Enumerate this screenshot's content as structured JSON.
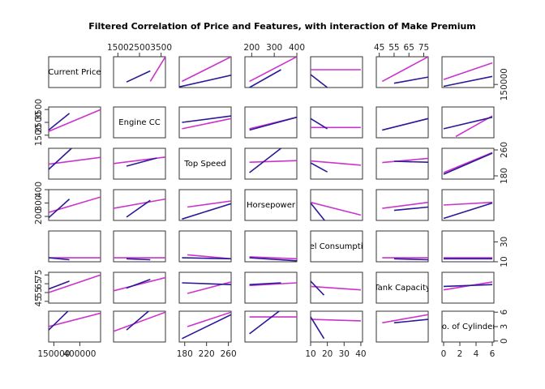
{
  "chart_data": {
    "type": "scatter-matrix",
    "title": "Filtered Correlation of Price and Features, with interaction of Make Premium",
    "variables": [
      {
        "name": "Current Price",
        "range": [
          100000,
          600000
        ],
        "ticks": [
          "150000",
          "400000"
        ],
        "tick_values": [
          150000,
          400000
        ]
      },
      {
        "name": "Engine CC",
        "range": [
          1300,
          3700
        ],
        "ticks": [
          "1500",
          "2500",
          "3500"
        ],
        "tick_values": [
          1500,
          2500,
          3500
        ]
      },
      {
        "name": "Top Speed",
        "range": [
          170,
          265
        ],
        "ticks": [
          "180",
          "220",
          "260"
        ],
        "tick_values": [
          180,
          220,
          260
        ]
      },
      {
        "name": "Horsepower",
        "range": [
          170,
          400
        ],
        "ticks": [
          "200",
          "300",
          "400"
        ],
        "tick_values": [
          200,
          300,
          400
        ]
      },
      {
        "name": "Fuel Consumption",
        "range": [
          10,
          41
        ],
        "ticks": [
          "10",
          "20",
          "30",
          "40"
        ],
        "tick_values": [
          10,
          20,
          30,
          40
        ]
      },
      {
        "name": "Tank Capacity",
        "range": [
          43,
          78
        ],
        "ticks": [
          "45",
          "55",
          "65",
          "75"
        ],
        "tick_values": [
          45,
          55,
          65,
          75
        ]
      },
      {
        "name": "No. of Cylinders",
        "range": [
          -0.2,
          6.2
        ],
        "ticks": [
          "0",
          "2",
          "4",
          "6"
        ],
        "tick_values": [
          0,
          2,
          4,
          6
        ]
      }
    ],
    "right_axis_tick_values": {
      "0": [
        150000
      ],
      "2": [
        180,
        260
      ],
      "4": [
        10,
        30
      ],
      "6": [
        0,
        3,
        6
      ]
    },
    "right_axis_tick_labels": {
      "0": [
        "150000"
      ],
      "2": [
        "180",
        "260"
      ],
      "4": [
        "10",
        "30"
      ],
      "6": [
        "0",
        "3",
        "6"
      ]
    },
    "series": [
      {
        "name": "",
        "color": "#cc33cc",
        "fits": {
          "0-1": [
            [
              3000,
              200000
            ],
            [
              3700,
              600000
            ]
          ],
          "0-2": [
            [
              175,
              200000
            ],
            [
              265,
              600000
            ]
          ],
          "0-3": [
            [
              190,
              200000
            ],
            [
              400,
              600000
            ]
          ],
          "0-4": [
            [
              10,
              390000
            ],
            [
              40,
              390000
            ]
          ],
          "0-5": [
            [
              47,
              200000
            ],
            [
              78,
              600000
            ]
          ],
          "0-6": [
            [
              0,
              230000
            ],
            [
              6,
              500000
            ]
          ],
          "1-0": [
            [
              100000,
              1800
            ],
            [
              600000,
              3500
            ]
          ],
          "1-2": [
            [
              175,
              2000
            ],
            [
              265,
              2800
            ]
          ],
          "1-3": [
            [
              190,
              2000
            ],
            [
              400,
              2900
            ]
          ],
          "1-4": [
            [
              10,
              2100
            ],
            [
              40,
              2100
            ]
          ],
          "1-5": [
            [
              47,
              1900
            ],
            [
              78,
              2800
            ]
          ],
          "1-6": [
            [
              1.5,
              1400
            ],
            [
              6,
              3000
            ]
          ],
          "2-0": [
            [
              100000,
              216
            ],
            [
              600000,
              237
            ]
          ],
          "2-1": [
            [
              1300,
              218
            ],
            [
              3700,
              238
            ]
          ],
          "2-3": [
            [
              190,
              222
            ],
            [
              400,
              227
            ]
          ],
          "2-4": [
            [
              10,
              226
            ],
            [
              40,
              213
            ]
          ],
          "2-5": [
            [
              47,
              221
            ],
            [
              78,
              234
            ]
          ],
          "2-6": [
            [
              0,
              190
            ],
            [
              6,
              252
            ]
          ],
          "3-0": [
            [
              100000,
              230
            ],
            [
              600000,
              345
            ]
          ],
          "3-1": [
            [
              1300,
              260
            ],
            [
              3700,
              330
            ]
          ],
          "3-2": [
            [
              185,
              270
            ],
            [
              265,
              315
            ]
          ],
          "3-4": [
            [
              10,
              305
            ],
            [
              40,
              210
            ]
          ],
          "3-5": [
            [
              47,
              260
            ],
            [
              78,
              305
            ]
          ],
          "3-6": [
            [
              0,
              285
            ],
            [
              6,
              305
            ]
          ],
          "4-0": [
            [
              100000,
              14
            ],
            [
              600000,
              14
            ]
          ],
          "4-1": [
            [
              1300,
              14
            ],
            [
              3700,
              14
            ]
          ],
          "4-2": [
            [
              185,
              17
            ],
            [
              265,
              13
            ]
          ],
          "4-3": [
            [
              190,
              15
            ],
            [
              400,
              13
            ]
          ],
          "4-5": [
            [
              47,
              14
            ],
            [
              78,
              14
            ]
          ],
          "4-6": [
            [
              0,
              14
            ],
            [
              6,
              14
            ]
          ],
          "5-0": [
            [
              100000,
              55
            ],
            [
              600000,
              75
            ]
          ],
          "5-1": [
            [
              1300,
              57
            ],
            [
              3700,
              72
            ]
          ],
          "5-2": [
            [
              185,
              54
            ],
            [
              265,
              67
            ]
          ],
          "5-3": [
            [
              190,
              63
            ],
            [
              400,
              66
            ]
          ],
          "5-4": [
            [
              10,
              62
            ],
            [
              40,
              58
            ]
          ],
          "5-6": [
            [
              0,
              58
            ],
            [
              6,
              67
            ]
          ],
          "6-0": [
            [
              100000,
              3.0
            ],
            [
              600000,
              5.8
            ]
          ],
          "6-1": [
            [
              1300,
              2.0
            ],
            [
              3700,
              6.0
            ]
          ],
          "6-2": [
            [
              185,
              3.0
            ],
            [
              265,
              6.0
            ]
          ],
          "6-3": [
            [
              190,
              5.0
            ],
            [
              400,
              5.0
            ]
          ],
          "6-4": [
            [
              10,
              4.5
            ],
            [
              40,
              4.2
            ]
          ],
          "6-5": [
            [
              47,
              3.8
            ],
            [
              78,
              5.5
            ]
          ]
        }
      },
      {
        "name": "",
        "color": "#2a1a99",
        "fits": {
          "0-1": [
            [
              1900,
              190000
            ],
            [
              3000,
              370000
            ]
          ],
          "0-2": [
            [
              170,
              110000
            ],
            [
              265,
              300000
            ]
          ],
          "0-3": [
            [
              190,
              100000
            ],
            [
              330,
              390000
            ]
          ],
          "0-4": [
            [
              10,
              310000
            ],
            [
              20,
              100000
            ]
          ],
          "0-5": [
            [
              55,
              170000
            ],
            [
              78,
              270000
            ]
          ],
          "0-6": [
            [
              0,
              120000
            ],
            [
              6,
              280000
            ]
          ],
          "1-0": [
            [
              100000,
              1900
            ],
            [
              300000,
              3200
            ]
          ],
          "1-2": [
            [
              175,
              2500
            ],
            [
              265,
              3000
            ]
          ],
          "1-3": [
            [
              190,
              1900
            ],
            [
              400,
              2900
            ]
          ],
          "1-4": [
            [
              10,
              2800
            ],
            [
              20,
              2000
            ]
          ],
          "1-5": [
            [
              47,
              1900
            ],
            [
              78,
              2800
            ]
          ],
          "1-6": [
            [
              0,
              2000
            ],
            [
              6,
              2900
            ]
          ],
          "2-0": [
            [
              100000,
              200
            ],
            [
              320000,
              265
            ]
          ],
          "2-1": [
            [
              1900,
              210
            ],
            [
              3300,
              235
            ]
          ],
          "2-3": [
            [
              190,
              190
            ],
            [
              330,
              265
            ]
          ],
          "2-4": [
            [
              10,
              220
            ],
            [
              20,
              192
            ]
          ],
          "2-5": [
            [
              55,
              225
            ],
            [
              78,
              222
            ]
          ],
          "2-6": [
            [
              0,
              185
            ],
            [
              6,
              250
            ]
          ],
          "3-0": [
            [
              100000,
              190
            ],
            [
              300000,
              330
            ]
          ],
          "3-1": [
            [
              1900,
              195
            ],
            [
              3000,
              320
            ]
          ],
          "3-2": [
            [
              175,
              180
            ],
            [
              265,
              295
            ]
          ],
          "3-4": [
            [
              10,
              300
            ],
            [
              19,
              160
            ]
          ],
          "3-5": [
            [
              55,
              245
            ],
            [
              78,
              270
            ]
          ],
          "3-6": [
            [
              0,
              185
            ],
            [
              6,
              300
            ]
          ],
          "4-0": [
            [
              100000,
              14
            ],
            [
              300000,
              12
            ]
          ],
          "4-1": [
            [
              1900,
              13
            ],
            [
              3000,
              12
            ]
          ],
          "4-2": [
            [
              175,
              14
            ],
            [
              265,
              13
            ]
          ],
          "4-3": [
            [
              190,
              14
            ],
            [
              400,
              11
            ]
          ],
          "4-5": [
            [
              55,
              13
            ],
            [
              78,
              12
            ]
          ],
          "4-6": [
            [
              0,
              13
            ],
            [
              6,
              13
            ]
          ],
          "5-0": [
            [
              100000,
              59
            ],
            [
              300000,
              68
            ]
          ],
          "5-1": [
            [
              1900,
              60
            ],
            [
              3000,
              70
            ]
          ],
          "5-2": [
            [
              175,
              66
            ],
            [
              265,
              64
            ]
          ],
          "5-3": [
            [
              190,
              64
            ],
            [
              330,
              66
            ]
          ],
          "5-4": [
            [
              10,
              68
            ],
            [
              18,
              52
            ]
          ],
          "5-6": [
            [
              0,
              62
            ],
            [
              6,
              64
            ]
          ],
          "6-0": [
            [
              100000,
              2.3
            ],
            [
              300000,
              6.5
            ]
          ],
          "6-1": [
            [
              1900,
              2.3
            ],
            [
              3000,
              6.5
            ]
          ],
          "6-2": [
            [
              175,
              0.5
            ],
            [
              265,
              5.5
            ]
          ],
          "6-3": [
            [
              190,
              1.5
            ],
            [
              330,
              6.5
            ]
          ],
          "6-4": [
            [
              10,
              5.0
            ],
            [
              18,
              0.5
            ]
          ],
          "6-5": [
            [
              55,
              3.8
            ],
            [
              78,
              4.5
            ]
          ]
        }
      }
    ]
  }
}
